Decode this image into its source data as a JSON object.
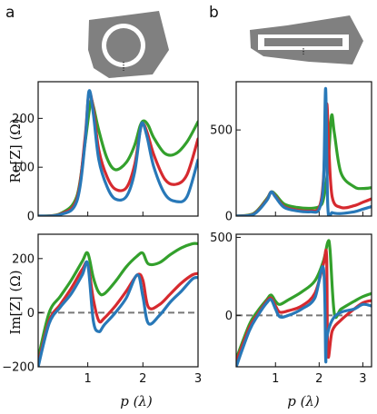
{
  "figure": {
    "panel_a_label": "a",
    "panel_b_label": "b",
    "ylabel_real": "Re[Z] (Ω)",
    "ylabel_imag": "Im[Z] (Ω)",
    "xlabel": "p (λ)"
  },
  "colors": {
    "blue": "#2878b8",
    "red": "#d62a2f",
    "green": "#33a02c",
    "shape_fill": "#808080",
    "dashed": "#777777"
  },
  "chart_data": [
    {
      "panel": "a",
      "quantity": "Re",
      "type": "line",
      "xlim": [
        0.1,
        3
      ],
      "ylim": [
        0,
        275
      ],
      "xticks": [
        "1",
        "2",
        "3"
      ],
      "yticks": [
        "0",
        "100",
        "200"
      ],
      "series": [
        {
          "color": "blue",
          "x": [
            0.1,
            0.5,
            0.8,
            0.95,
            1.02,
            1.1,
            1.2,
            1.35,
            1.5,
            1.7,
            1.85,
            1.95,
            2.0,
            2.08,
            2.2,
            2.4,
            2.6,
            2.8,
            3.0
          ],
          "y": [
            0,
            3,
            30,
            150,
            255,
            210,
            115,
            60,
            35,
            40,
            90,
            175,
            190,
            160,
            100,
            45,
            30,
            40,
            115
          ]
        },
        {
          "color": "red",
          "x": [
            0.1,
            0.5,
            0.8,
            0.95,
            1.02,
            1.1,
            1.2,
            1.35,
            1.5,
            1.7,
            1.85,
            1.95,
            2.0,
            2.08,
            2.2,
            2.4,
            2.6,
            2.8,
            3.0
          ],
          "y": [
            0,
            4,
            35,
            160,
            250,
            220,
            135,
            80,
            55,
            58,
            105,
            175,
            190,
            170,
            125,
            75,
            65,
            85,
            158
          ]
        },
        {
          "color": "green",
          "x": [
            0.1,
            0.5,
            0.8,
            0.95,
            1.05,
            1.1,
            1.2,
            1.35,
            1.5,
            1.7,
            1.85,
            1.95,
            2.02,
            2.1,
            2.2,
            2.4,
            2.6,
            2.8,
            3.0
          ],
          "y": [
            0,
            5,
            40,
            150,
            232,
            225,
            175,
            118,
            95,
            110,
            145,
            185,
            195,
            185,
            160,
            128,
            128,
            152,
            193
          ]
        }
      ]
    },
    {
      "panel": "a",
      "quantity": "Im",
      "type": "line",
      "xlim": [
        0.1,
        3
      ],
      "ylim": [
        -200,
        290
      ],
      "xticks": [
        "1",
        "2",
        "3"
      ],
      "yticks": [
        "-200",
        "0",
        "200"
      ],
      "reference_line": 0,
      "series": [
        {
          "color": "blue",
          "x": [
            0.1,
            0.3,
            0.5,
            0.7,
            0.9,
            1.0,
            1.1,
            1.2,
            1.3,
            1.5,
            1.7,
            1.9,
            2.0,
            2.1,
            2.3,
            2.5,
            2.7,
            2.9,
            3.0
          ],
          "y": [
            -200,
            -40,
            20,
            70,
            140,
            180,
            -30,
            -70,
            -45,
            0,
            55,
            140,
            60,
            -40,
            -10,
            40,
            80,
            125,
            130
          ]
        },
        {
          "color": "red",
          "x": [
            0.1,
            0.3,
            0.5,
            0.7,
            0.9,
            1.0,
            1.1,
            1.2,
            1.3,
            1.5,
            1.7,
            1.9,
            2.0,
            2.1,
            2.3,
            2.5,
            2.7,
            2.9,
            3.0
          ],
          "y": [
            -190,
            -30,
            30,
            90,
            160,
            180,
            50,
            -30,
            -20,
            25,
            80,
            140,
            120,
            20,
            30,
            70,
            110,
            140,
            145
          ]
        },
        {
          "color": "green",
          "x": [
            0.1,
            0.3,
            0.5,
            0.7,
            0.9,
            1.0,
            1.1,
            1.2,
            1.3,
            1.5,
            1.7,
            1.9,
            2.0,
            2.1,
            2.3,
            2.5,
            2.7,
            2.9,
            3.0
          ],
          "y": [
            -170,
            0,
            60,
            120,
            190,
            220,
            130,
            75,
            70,
            115,
            170,
            210,
            220,
            180,
            185,
            215,
            240,
            255,
            255
          ]
        }
      ]
    },
    {
      "panel": "b",
      "quantity": "Re",
      "type": "line",
      "xlim": [
        0.1,
        3.2
      ],
      "ylim": [
        0,
        780
      ],
      "xticks": [
        "1",
        "2",
        "3"
      ],
      "yticks": [
        "0",
        "500"
      ],
      "series": [
        {
          "color": "blue",
          "x": [
            0.1,
            0.5,
            0.8,
            0.9,
            1.0,
            1.2,
            1.5,
            1.8,
            2.0,
            2.1,
            2.15,
            2.2,
            2.3,
            2.5,
            2.8,
            3.0,
            3.2
          ],
          "y": [
            0,
            10,
            90,
            140,
            110,
            50,
            30,
            25,
            40,
            200,
            740,
            50,
            20,
            15,
            25,
            40,
            55
          ]
        },
        {
          "color": "red",
          "x": [
            0.1,
            0.5,
            0.8,
            0.9,
            1.0,
            1.2,
            1.5,
            1.8,
            2.0,
            2.1,
            2.17,
            2.22,
            2.3,
            2.5,
            2.8,
            3.0,
            3.2
          ],
          "y": [
            0,
            12,
            95,
            140,
            115,
            55,
            35,
            30,
            50,
            220,
            650,
            400,
            110,
            50,
            60,
            80,
            100
          ]
        },
        {
          "color": "green",
          "x": [
            0.1,
            0.5,
            0.8,
            0.9,
            1.0,
            1.2,
            1.5,
            1.8,
            2.0,
            2.1,
            2.2,
            2.28,
            2.35,
            2.5,
            2.8,
            3.0,
            3.2
          ],
          "y": [
            0,
            15,
            100,
            140,
            125,
            70,
            50,
            45,
            55,
            100,
            280,
            580,
            480,
            250,
            170,
            160,
            165
          ]
        }
      ]
    },
    {
      "panel": "b",
      "quantity": "Im",
      "type": "line",
      "xlim": [
        0.1,
        3.2
      ],
      "ylim": [
        -330,
        520
      ],
      "xticks": [
        "1",
        "2",
        "3"
      ],
      "yticks": [
        "0",
        "500"
      ],
      "reference_line": 0,
      "series": [
        {
          "color": "blue",
          "x": [
            0.1,
            0.4,
            0.6,
            0.8,
            0.9,
            1.0,
            1.1,
            1.3,
            1.6,
            1.9,
            2.1,
            2.15,
            2.17,
            2.3,
            2.5,
            2.8,
            3.0,
            3.2
          ],
          "y": [
            -330,
            -100,
            0,
            80,
            100,
            40,
            -10,
            0,
            40,
            110,
            300,
            -280,
            -150,
            -30,
            20,
            40,
            70,
            60
          ]
        },
        {
          "color": "red",
          "x": [
            0.1,
            0.4,
            0.6,
            0.8,
            0.9,
            1.0,
            1.1,
            1.3,
            1.6,
            1.9,
            2.1,
            2.17,
            2.2,
            2.3,
            2.5,
            2.8,
            3.0,
            3.2
          ],
          "y": [
            -300,
            -80,
            10,
            90,
            110,
            60,
            20,
            30,
            60,
            140,
            330,
            380,
            -250,
            -100,
            -30,
            40,
            80,
            95
          ]
        },
        {
          "color": "green",
          "x": [
            0.1,
            0.4,
            0.6,
            0.8,
            0.9,
            1.0,
            1.1,
            1.3,
            1.6,
            1.9,
            2.1,
            2.2,
            2.25,
            2.35,
            2.5,
            2.8,
            3.0,
            3.2
          ],
          "y": [
            -280,
            -60,
            30,
            100,
            130,
            90,
            70,
            100,
            150,
            220,
            350,
            470,
            420,
            10,
            40,
            90,
            120,
            140
          ]
        }
      ]
    }
  ]
}
